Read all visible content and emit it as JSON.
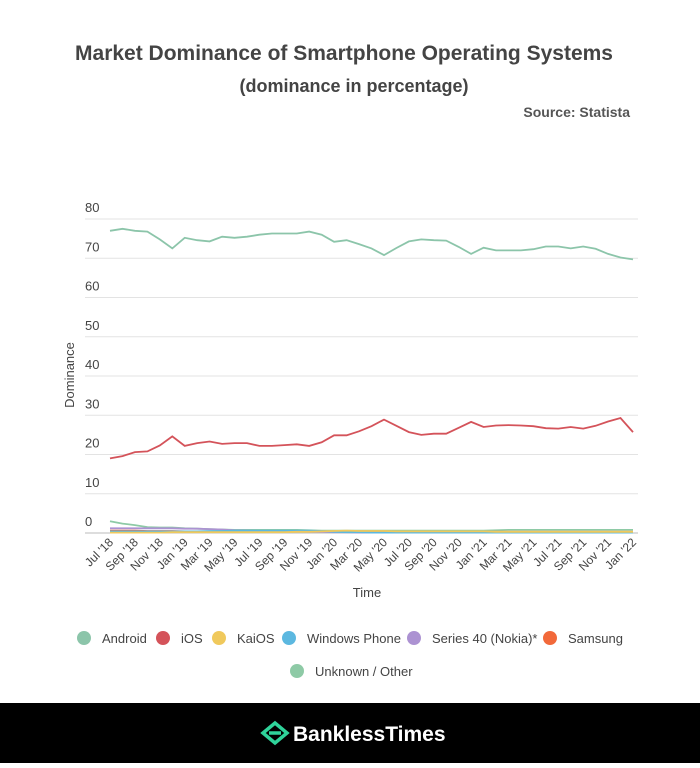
{
  "chart_data": {
    "type": "line",
    "title": "Market Dominance of Smartphone Operating Systems",
    "subtitle": "(dominance in percentage)",
    "source": "Source: Statista",
    "x_label": "Time",
    "y_label": "Dominance",
    "categories": [
      "Jul '18",
      null,
      "Sep '18",
      null,
      "Nov '18",
      null,
      "Jan '19",
      null,
      "Mar '19",
      null,
      "May '19",
      null,
      "Jul '19",
      null,
      "Sep '19",
      null,
      "Nov '19",
      null,
      "Jan '20",
      null,
      "Mar '20",
      null,
      "May '20",
      null,
      "Jul '20",
      null,
      "Sep '20",
      null,
      "Nov '20",
      null,
      "Jan '21",
      null,
      "Mar '21",
      null,
      "May '21",
      null,
      "Jul '21",
      null,
      "Sep '21",
      null,
      "Nov '21",
      null,
      "Jan '22"
    ],
    "series": [
      {
        "name": "Android",
        "color": "#8cc5aa",
        "values": [
          77,
          77.5,
          77,
          76.8,
          74.8,
          72.5,
          75.2,
          74.6,
          74.3,
          75.5,
          75.2,
          75.5,
          76,
          76.3,
          76.3,
          76.3,
          76.8,
          76,
          74.2,
          74.6,
          73.6,
          72.5,
          70.8,
          72.6,
          74.3,
          74.8,
          74.6,
          74.5,
          72.9,
          71.1,
          72.7,
          72,
          72,
          72,
          72.3,
          73,
          73,
          72.5,
          73,
          72.4,
          71.1,
          70.2,
          69.7
        ]
      },
      {
        "name": "iOS",
        "color": "#d4535a",
        "values": [
          19,
          19.6,
          20.6,
          20.8,
          22.3,
          24.6,
          22.2,
          22.9,
          23.3,
          22.7,
          22.9,
          22.9,
          22.2,
          22.2,
          22.4,
          22.6,
          22.2,
          23.1,
          24.9,
          24.9,
          25.9,
          27.2,
          28.9,
          27.3,
          25.7,
          25,
          25.3,
          25.3,
          26.8,
          28.3,
          27,
          27.4,
          27.5,
          27.4,
          27.2,
          26.7,
          26.6,
          27,
          26.6,
          27.3,
          28.4,
          29.3,
          25.7
        ]
      },
      {
        "name": "KaiOS",
        "color": "#f0c95c",
        "values": [
          0.1,
          0.1,
          0.1,
          0.1,
          0.1,
          0.2,
          0.2,
          0.2,
          0.2,
          0.2,
          0.2,
          0.2,
          0.2,
          0.2,
          0.2,
          0.3,
          0.3,
          0.4,
          0.5,
          0.6,
          0.5,
          0.5,
          0.5,
          0.4,
          0.4,
          0.4,
          0.4,
          0.4,
          0.4,
          0.4,
          0.4,
          0.3,
          0.3,
          0.3,
          0.3,
          0.3,
          0.3,
          0.3,
          0.3,
          0.3,
          0.3,
          0.3,
          0.3
        ]
      },
      {
        "name": "Windows Phone",
        "color": "#5cb8e0",
        "values": [
          0.4,
          0.4,
          0.4,
          0.4,
          0.4,
          0.4,
          0.4,
          0.4,
          0.5,
          0.5,
          0.6,
          0.6,
          0.6,
          0.6,
          0.6,
          0.6,
          0.6,
          0.5,
          0.3,
          0.2,
          0.2,
          0.1,
          0.1,
          0.1,
          0.1,
          0.1,
          0.1,
          0.1,
          0.1,
          0.1,
          0.1,
          0.1,
          0.1,
          0.1,
          0.1,
          0.1,
          0.1,
          0.1,
          0.1,
          0.1,
          0.1,
          0.1,
          0.1
        ]
      },
      {
        "name": "Series 40 (Nokia)*",
        "color": "#ac92d2",
        "values": [
          1.2,
          1.2,
          1.2,
          1.2,
          1.2,
          1.2,
          1.1,
          1.1,
          1,
          0.9,
          0.7,
          0.6,
          0.5,
          0.5,
          0.4,
          0.4,
          0.3,
          0.3,
          0.2,
          0.2,
          0.1,
          0.1,
          0.1,
          0.1,
          0.1,
          0.1,
          0.1,
          0.1,
          0.1,
          0.1,
          0.1,
          0.1,
          0.1,
          0.1,
          0.1,
          0.1,
          0.1,
          0.1,
          0.1,
          0.1,
          0.1,
          0.1,
          0.1
        ]
      },
      {
        "name": "Samsung",
        "color": "#f2693a",
        "values": [
          0.6,
          0.6,
          0.6,
          0.5,
          0.5,
          0.5,
          0.4,
          0.4,
          0.4,
          0.4,
          0.4,
          0.4,
          0.4,
          0.4,
          0.4,
          0.4,
          0.4,
          0.4,
          0.4,
          0.4,
          0.3,
          0.3,
          0.3,
          0.3,
          0.3,
          0.3,
          0.3,
          0.3,
          0.3,
          0.3,
          0.3,
          0.3,
          0.3,
          0.3,
          0.3,
          0.3,
          0.3,
          0.3,
          0.3,
          0.3,
          0.3,
          0.3,
          0.3
        ]
      },
      {
        "name": "Unknown / Other",
        "color": "#8ecaa6",
        "values": [
          3,
          2.4,
          2,
          1.5,
          1.4,
          1.4,
          1.2,
          1.1,
          1,
          0.9,
          0.8,
          0.8,
          0.8,
          0.8,
          0.8,
          0.8,
          0.7,
          0.6,
          0.6,
          0.6,
          0.6,
          0.6,
          0.6,
          0.6,
          0.6,
          0.6,
          0.6,
          0.6,
          0.6,
          0.6,
          0.6,
          0.7,
          0.8,
          0.8,
          0.8,
          0.8,
          0.8,
          0.8,
          0.8,
          0.8,
          0.8,
          0.8,
          0.8
        ]
      }
    ],
    "ylim": [
      0,
      80
    ],
    "yticks": [
      0,
      10,
      20,
      30,
      40,
      50,
      60,
      70,
      80
    ],
    "grid": true
  },
  "footer": {
    "brand": "BanklessTimes"
  }
}
